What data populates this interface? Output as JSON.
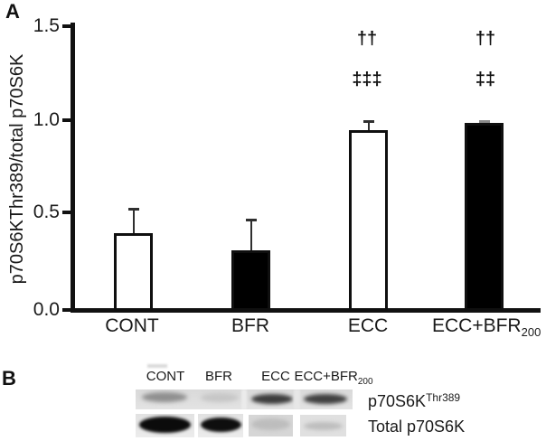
{
  "figure": {
    "panel_a_label": "A",
    "panel_b_label": "B"
  },
  "chart_data": {
    "type": "bar",
    "title": "",
    "xlabel": "",
    "ylabel": "p70S6KThr389/total p70S6K",
    "ylim": [
      0,
      1.5
    ],
    "ytick_labels": [
      "0.0",
      "0.5",
      "1.0",
      "1.5"
    ],
    "grid": false,
    "legend": "none",
    "categories": [
      "CONT",
      "BFR",
      "ECC",
      "ECC+BFR200"
    ],
    "values": [
      0.41,
      0.32,
      0.95,
      0.99
    ],
    "errors_upper": [
      0.13,
      0.16,
      0.05,
      0.01
    ],
    "bar_fills": [
      "#ffffff",
      "#000000",
      "#ffffff",
      "#000000"
    ],
    "bar_border_color": "#0f0f0f",
    "error_bar_colors": [
      "#2f2f2f",
      "#2f2f2f",
      "#2f2f2f",
      "#8a8a8a"
    ],
    "annotations": [
      {
        "over": "ECC",
        "line1": "††",
        "line2": "‡‡‡"
      },
      {
        "over": "ECC+BFR200",
        "line1": "††",
        "line2": "‡‡"
      }
    ]
  },
  "panel_a": {
    "x_labels": [
      {
        "text": "CONT",
        "sub": ""
      },
      {
        "text": "BFR",
        "sub": ""
      },
      {
        "text": "ECC",
        "sub": ""
      },
      {
        "text": "ECC+BFR",
        "sub": "200"
      }
    ]
  },
  "panel_b": {
    "lane_labels": [
      {
        "text": "CONT",
        "sub": ""
      },
      {
        "text": "BFR",
        "sub": ""
      },
      {
        "text": "ECC",
        "sub": ""
      },
      {
        "text": "ECC+BFR",
        "sub": "200"
      }
    ],
    "rows": [
      {
        "label_main": "p70S6K",
        "label_sup": "Thr389",
        "band_intensities": [
          "medium",
          "very-faint",
          "dark",
          "dark"
        ]
      },
      {
        "label_main": "Total p70S6K",
        "label_sup": "",
        "band_intensities": [
          "very-dark",
          "very-dark",
          "faint",
          "faint"
        ]
      }
    ]
  }
}
